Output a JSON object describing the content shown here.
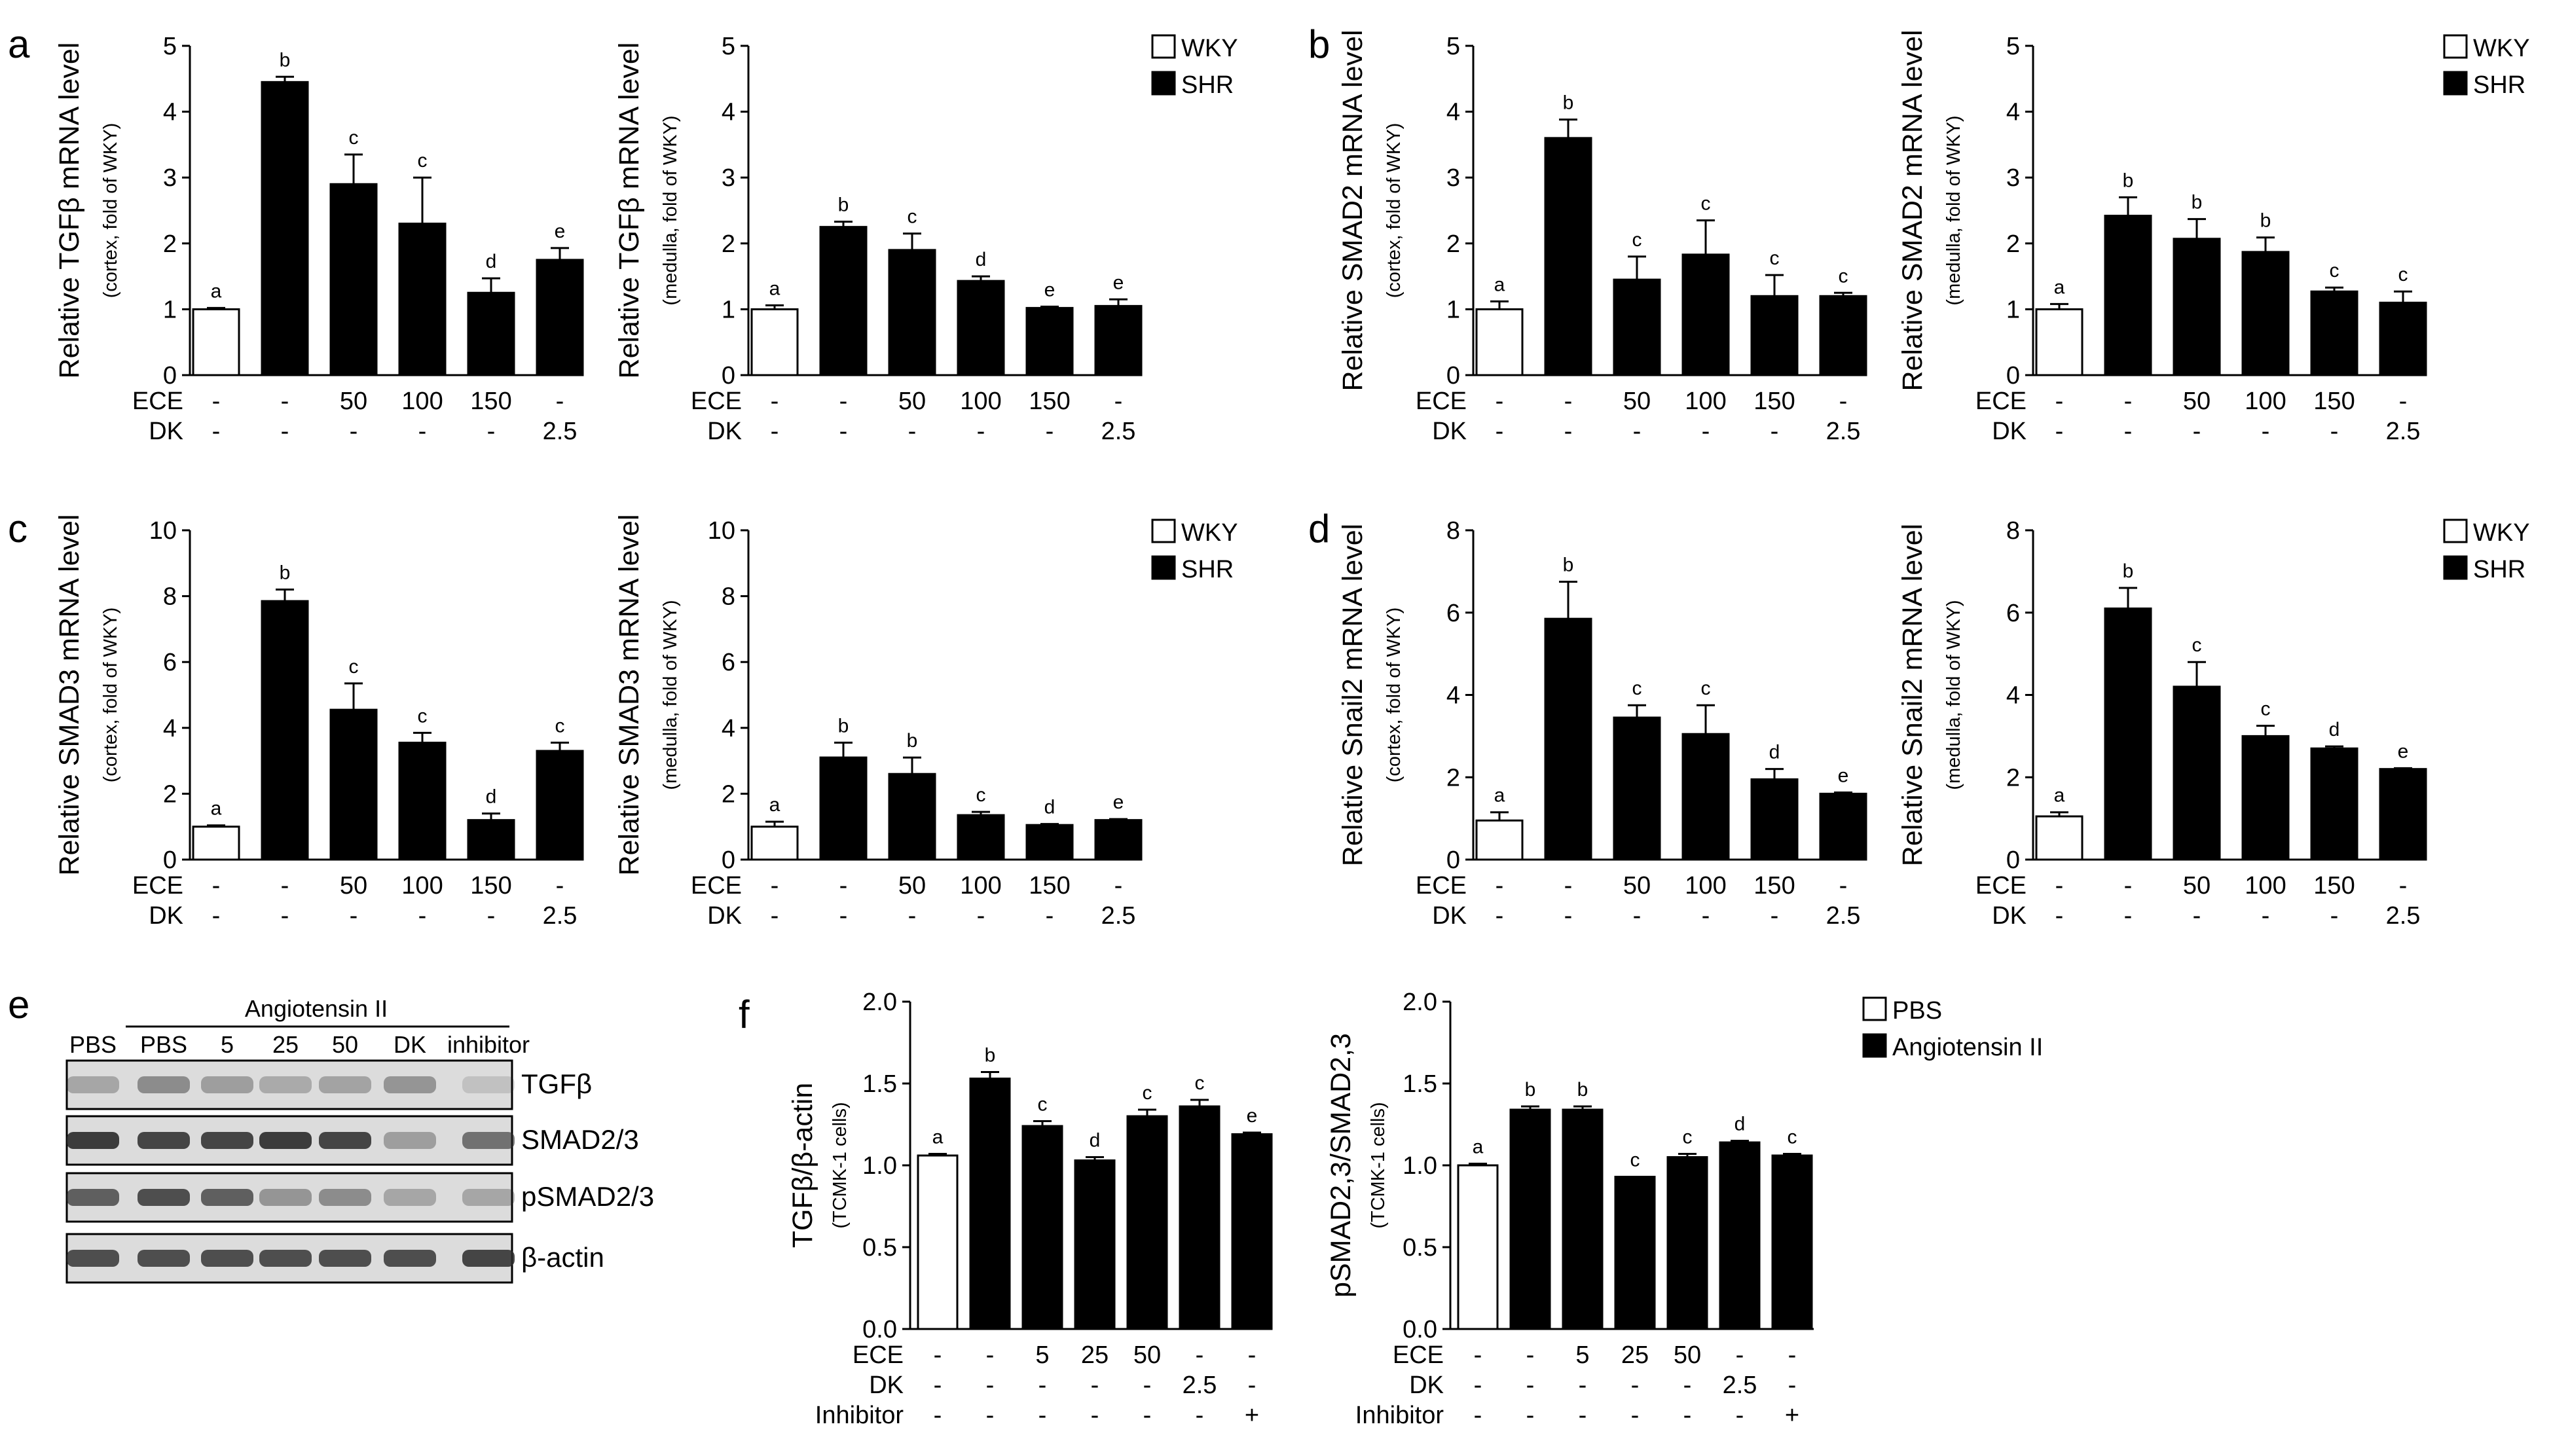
{
  "colors": {
    "ink": "#000000",
    "paper": "#ffffff",
    "blot_bg": "#dcdcdc",
    "blot_band": "#2a2a2a"
  },
  "panels": {
    "a": {
      "label": "a",
      "legend": [
        "WKY",
        "SHR"
      ]
    },
    "b": {
      "label": "b",
      "legend": [
        "WKY",
        "SHR"
      ]
    },
    "c": {
      "label": "c",
      "legend": [
        "WKY",
        "SHR"
      ]
    },
    "d": {
      "label": "d",
      "legend": [
        "WKY",
        "SHR"
      ]
    },
    "e": {
      "label": "e",
      "group_label": "Angiotensin II",
      "lanes": [
        "PBS",
        "PBS",
        "5",
        "25",
        "50",
        "DK",
        "inhibitor"
      ],
      "bands": [
        "TGFβ",
        "SMAD2/3",
        "pSMAD2/3",
        "β-actin"
      ]
    },
    "f": {
      "label": "f",
      "legend": [
        "PBS",
        "Angiotensin II"
      ]
    }
  },
  "chart_data": [
    {
      "id": "a1",
      "panel": "a",
      "type": "bar",
      "ylabel": "Relative TGFβ mRNA level",
      "ylabel_sub": "(cortex, fold of WKY)",
      "ylim": [
        0,
        5
      ],
      "yticks": [
        "0",
        "1",
        "2",
        "3",
        "4",
        "5"
      ],
      "series": [
        {
          "name": "WKY",
          "fill": "white"
        },
        {
          "name": "SHR",
          "fill": "black"
        }
      ],
      "bars": [
        {
          "value": 1.0,
          "error": 0.02,
          "letter": "a",
          "series": "WKY"
        },
        {
          "value": 4.45,
          "error": 0.08,
          "letter": "b",
          "series": "SHR"
        },
        {
          "value": 2.9,
          "error": 0.45,
          "letter": "c",
          "series": "SHR"
        },
        {
          "value": 2.3,
          "error": 0.7,
          "letter": "c",
          "series": "SHR"
        },
        {
          "value": 1.25,
          "error": 0.22,
          "letter": "d",
          "series": "SHR"
        },
        {
          "value": 1.75,
          "error": 0.18,
          "letter": "e",
          "series": "SHR"
        }
      ],
      "conditions": [
        {
          "name": "ECE",
          "values": [
            "-",
            "-",
            "50",
            "100",
            "150",
            "-"
          ]
        },
        {
          "name": "DK",
          "values": [
            "-",
            "-",
            "-",
            "-",
            "-",
            "2.5"
          ]
        }
      ]
    },
    {
      "id": "a2",
      "panel": "a",
      "type": "bar",
      "ylabel": "Relative TGFβ mRNA level",
      "ylabel_sub": "(medulla, fold of WKY)",
      "ylim": [
        0,
        5
      ],
      "yticks": [
        "0",
        "1",
        "2",
        "3",
        "4",
        "5"
      ],
      "series": [
        {
          "name": "WKY",
          "fill": "white"
        },
        {
          "name": "SHR",
          "fill": "black"
        }
      ],
      "bars": [
        {
          "value": 1.0,
          "error": 0.06,
          "letter": "a",
          "series": "WKY"
        },
        {
          "value": 2.25,
          "error": 0.08,
          "letter": "b",
          "series": "SHR"
        },
        {
          "value": 1.9,
          "error": 0.25,
          "letter": "c",
          "series": "SHR"
        },
        {
          "value": 1.43,
          "error": 0.07,
          "letter": "d",
          "series": "SHR"
        },
        {
          "value": 1.02,
          "error": 0.02,
          "letter": "e",
          "series": "SHR"
        },
        {
          "value": 1.05,
          "error": 0.1,
          "letter": "e",
          "series": "SHR"
        }
      ],
      "conditions": [
        {
          "name": "ECE",
          "values": [
            "-",
            "-",
            "50",
            "100",
            "150",
            "-"
          ]
        },
        {
          "name": "DK",
          "values": [
            "-",
            "-",
            "-",
            "-",
            "-",
            "2.5"
          ]
        }
      ]
    },
    {
      "id": "b1",
      "panel": "b",
      "type": "bar",
      "ylabel": "Relative SMAD2 mRNA level",
      "ylabel_sub": "(cortex, fold of WKY)",
      "ylim": [
        0,
        5
      ],
      "yticks": [
        "0",
        "1",
        "2",
        "3",
        "4",
        "5"
      ],
      "series": [
        {
          "name": "WKY",
          "fill": "white"
        },
        {
          "name": "SHR",
          "fill": "black"
        }
      ],
      "bars": [
        {
          "value": 1.0,
          "error": 0.12,
          "letter": "a",
          "series": "WKY"
        },
        {
          "value": 3.6,
          "error": 0.28,
          "letter": "b",
          "series": "SHR"
        },
        {
          "value": 1.45,
          "error": 0.35,
          "letter": "c",
          "series": "SHR"
        },
        {
          "value": 1.83,
          "error": 0.52,
          "letter": "c",
          "series": "SHR"
        },
        {
          "value": 1.2,
          "error": 0.32,
          "letter": "c",
          "series": "SHR"
        },
        {
          "value": 1.2,
          "error": 0.05,
          "letter": "c",
          "series": "SHR"
        }
      ],
      "conditions": [
        {
          "name": "ECE",
          "values": [
            "-",
            "-",
            "50",
            "100",
            "150",
            "-"
          ]
        },
        {
          "name": "DK",
          "values": [
            "-",
            "-",
            "-",
            "-",
            "-",
            "2.5"
          ]
        }
      ]
    },
    {
      "id": "b2",
      "panel": "b",
      "type": "bar",
      "ylabel": "Relative SMAD2 mRNA level",
      "ylabel_sub": "(medulla, fold of WKY)",
      "ylim": [
        0,
        5
      ],
      "yticks": [
        "0",
        "1",
        "2",
        "3",
        "4",
        "5"
      ],
      "series": [
        {
          "name": "WKY",
          "fill": "white"
        },
        {
          "name": "SHR",
          "fill": "black"
        }
      ],
      "bars": [
        {
          "value": 1.0,
          "error": 0.08,
          "letter": "a",
          "series": "WKY"
        },
        {
          "value": 2.42,
          "error": 0.28,
          "letter": "b",
          "series": "SHR"
        },
        {
          "value": 2.07,
          "error": 0.3,
          "letter": "b",
          "series": "SHR"
        },
        {
          "value": 1.87,
          "error": 0.22,
          "letter": "b",
          "series": "SHR"
        },
        {
          "value": 1.27,
          "error": 0.06,
          "letter": "c",
          "series": "SHR"
        },
        {
          "value": 1.1,
          "error": 0.17,
          "letter": "c",
          "series": "SHR"
        }
      ],
      "conditions": [
        {
          "name": "ECE",
          "values": [
            "-",
            "-",
            "50",
            "100",
            "150",
            "-"
          ]
        },
        {
          "name": "DK",
          "values": [
            "-",
            "-",
            "-",
            "-",
            "-",
            "2.5"
          ]
        }
      ]
    },
    {
      "id": "c1",
      "panel": "c",
      "type": "bar",
      "ylabel": "Relative SMAD3 mRNA level",
      "ylabel_sub": "(cortex, fold of WKY)",
      "ylim": [
        0,
        10
      ],
      "yticks": [
        "0",
        "2",
        "4",
        "6",
        "8",
        "10"
      ],
      "series": [
        {
          "name": "WKY",
          "fill": "white"
        },
        {
          "name": "SHR",
          "fill": "black"
        }
      ],
      "bars": [
        {
          "value": 1.0,
          "error": 0.04,
          "letter": "a",
          "series": "WKY"
        },
        {
          "value": 7.85,
          "error": 0.35,
          "letter": "b",
          "series": "SHR"
        },
        {
          "value": 4.55,
          "error": 0.8,
          "letter": "c",
          "series": "SHR"
        },
        {
          "value": 3.55,
          "error": 0.3,
          "letter": "c",
          "series": "SHR"
        },
        {
          "value": 1.2,
          "error": 0.2,
          "letter": "d",
          "series": "SHR"
        },
        {
          "value": 3.3,
          "error": 0.25,
          "letter": "c",
          "series": "SHR"
        }
      ],
      "conditions": [
        {
          "name": "ECE",
          "values": [
            "-",
            "-",
            "50",
            "100",
            "150",
            "-"
          ]
        },
        {
          "name": "DK",
          "values": [
            "-",
            "-",
            "-",
            "-",
            "-",
            "2.5"
          ]
        }
      ]
    },
    {
      "id": "c2",
      "panel": "c",
      "type": "bar",
      "ylabel": "Relative SMAD3 mRNA level",
      "ylabel_sub": "(medulla, fold of WKY)",
      "ylim": [
        0,
        10
      ],
      "yticks": [
        "0",
        "2",
        "4",
        "6",
        "8",
        "10"
      ],
      "series": [
        {
          "name": "WKY",
          "fill": "white"
        },
        {
          "name": "SHR",
          "fill": "black"
        }
      ],
      "bars": [
        {
          "value": 1.0,
          "error": 0.15,
          "letter": "a",
          "series": "WKY"
        },
        {
          "value": 3.1,
          "error": 0.45,
          "letter": "b",
          "series": "SHR"
        },
        {
          "value": 2.6,
          "error": 0.5,
          "letter": "b",
          "series": "SHR"
        },
        {
          "value": 1.35,
          "error": 0.1,
          "letter": "c",
          "series": "SHR"
        },
        {
          "value": 1.05,
          "error": 0.03,
          "letter": "d",
          "series": "SHR"
        },
        {
          "value": 1.2,
          "error": 0.03,
          "letter": "e",
          "series": "SHR"
        }
      ],
      "conditions": [
        {
          "name": "ECE",
          "values": [
            "-",
            "-",
            "50",
            "100",
            "150",
            "-"
          ]
        },
        {
          "name": "DK",
          "values": [
            "-",
            "-",
            "-",
            "-",
            "-",
            "2.5"
          ]
        }
      ]
    },
    {
      "id": "d1",
      "panel": "d",
      "type": "bar",
      "ylabel": "Relative Snail2 mRNA level",
      "ylabel_sub": "(cortex, fold of WKY)",
      "ylim": [
        0,
        8
      ],
      "yticks": [
        "0",
        "2",
        "4",
        "6",
        "8"
      ],
      "series": [
        {
          "name": "WKY",
          "fill": "white"
        },
        {
          "name": "SHR",
          "fill": "black"
        }
      ],
      "bars": [
        {
          "value": 0.95,
          "error": 0.2,
          "letter": "a",
          "series": "WKY"
        },
        {
          "value": 5.85,
          "error": 0.9,
          "letter": "b",
          "series": "SHR"
        },
        {
          "value": 3.45,
          "error": 0.3,
          "letter": "c",
          "series": "SHR"
        },
        {
          "value": 3.05,
          "error": 0.7,
          "letter": "c",
          "series": "SHR"
        },
        {
          "value": 1.95,
          "error": 0.25,
          "letter": "d",
          "series": "SHR"
        },
        {
          "value": 1.6,
          "error": 0.03,
          "letter": "e",
          "series": "SHR"
        }
      ],
      "conditions": [
        {
          "name": "ECE",
          "values": [
            "-",
            "-",
            "50",
            "100",
            "150",
            "-"
          ]
        },
        {
          "name": "DK",
          "values": [
            "-",
            "-",
            "-",
            "-",
            "-",
            "2.5"
          ]
        }
      ]
    },
    {
      "id": "d2",
      "panel": "d",
      "type": "bar",
      "ylabel": "Relative Snail2 mRNA level",
      "ylabel_sub": "(medulla, fold of WKY)",
      "ylim": [
        0,
        8
      ],
      "yticks": [
        "0",
        "2",
        "4",
        "6",
        "8"
      ],
      "series": [
        {
          "name": "WKY",
          "fill": "white"
        },
        {
          "name": "SHR",
          "fill": "black"
        }
      ],
      "bars": [
        {
          "value": 1.05,
          "error": 0.1,
          "letter": "a",
          "series": "WKY"
        },
        {
          "value": 6.1,
          "error": 0.5,
          "letter": "b",
          "series": "SHR"
        },
        {
          "value": 4.2,
          "error": 0.6,
          "letter": "c",
          "series": "SHR"
        },
        {
          "value": 3.0,
          "error": 0.25,
          "letter": "c",
          "series": "SHR"
        },
        {
          "value": 2.7,
          "error": 0.05,
          "letter": "d",
          "series": "SHR"
        },
        {
          "value": 2.2,
          "error": 0.02,
          "letter": "e",
          "series": "SHR"
        }
      ],
      "conditions": [
        {
          "name": "ECE",
          "values": [
            "-",
            "-",
            "50",
            "100",
            "150",
            "-"
          ]
        },
        {
          "name": "DK",
          "values": [
            "-",
            "-",
            "-",
            "-",
            "-",
            "2.5"
          ]
        }
      ]
    },
    {
      "id": "f1",
      "panel": "f",
      "type": "bar",
      "ylabel": "TGFβ/β-actin",
      "ylabel_sub": "(TCMK-1 cells)",
      "ylim": [
        0,
        2.0
      ],
      "yticks": [
        "0.0",
        "0.5",
        "1.0",
        "1.5",
        "2.0"
      ],
      "series": [
        {
          "name": "PBS",
          "fill": "white"
        },
        {
          "name": "Angiotensin II",
          "fill": "black"
        }
      ],
      "bars": [
        {
          "value": 1.06,
          "error": 0.01,
          "letter": "a",
          "series": "PBS"
        },
        {
          "value": 1.53,
          "error": 0.04,
          "letter": "b",
          "series": "Angiotensin II"
        },
        {
          "value": 1.24,
          "error": 0.03,
          "letter": "c",
          "series": "Angiotensin II"
        },
        {
          "value": 1.03,
          "error": 0.02,
          "letter": "d",
          "series": "Angiotensin II"
        },
        {
          "value": 1.3,
          "error": 0.04,
          "letter": "c",
          "series": "Angiotensin II"
        },
        {
          "value": 1.36,
          "error": 0.04,
          "letter": "c",
          "series": "Angiotensin II"
        },
        {
          "value": 1.19,
          "error": 0.01,
          "letter": "e",
          "series": "Angiotensin II"
        }
      ],
      "conditions": [
        {
          "name": "ECE",
          "values": [
            "-",
            "-",
            "5",
            "25",
            "50",
            "-",
            "-"
          ]
        },
        {
          "name": "DK",
          "values": [
            "-",
            "-",
            "-",
            "-",
            "-",
            "2.5",
            "-"
          ]
        },
        {
          "name": "Inhibitor",
          "values": [
            "-",
            "-",
            "-",
            "-",
            "-",
            "-",
            "+"
          ]
        }
      ]
    },
    {
      "id": "f2",
      "panel": "f",
      "type": "bar",
      "ylabel": "pSMAD2,3/SMAD2,3",
      "ylabel_sub": "(TCMK-1 cells)",
      "ylim": [
        0,
        2.0
      ],
      "yticks": [
        "0.0",
        "0.5",
        "1.0",
        "1.5",
        "2.0"
      ],
      "series": [
        {
          "name": "PBS",
          "fill": "white"
        },
        {
          "name": "Angiotensin II",
          "fill": "black"
        }
      ],
      "bars": [
        {
          "value": 1.0,
          "error": 0.01,
          "letter": "a",
          "series": "PBS"
        },
        {
          "value": 1.34,
          "error": 0.02,
          "letter": "b",
          "series": "Angiotensin II"
        },
        {
          "value": 1.34,
          "error": 0.02,
          "letter": "b",
          "series": "Angiotensin II"
        },
        {
          "value": 0.93,
          "error": 0.0,
          "letter": "c",
          "series": "Angiotensin II"
        },
        {
          "value": 1.05,
          "error": 0.02,
          "letter": "c",
          "series": "Angiotensin II"
        },
        {
          "value": 1.14,
          "error": 0.01,
          "letter": "d",
          "series": "Angiotensin II"
        },
        {
          "value": 1.06,
          "error": 0.01,
          "letter": "c",
          "series": "Angiotensin II"
        }
      ],
      "conditions": [
        {
          "name": "ECE",
          "values": [
            "-",
            "-",
            "5",
            "25",
            "50",
            "-",
            "-"
          ]
        },
        {
          "name": "DK",
          "values": [
            "-",
            "-",
            "-",
            "-",
            "-",
            "2.5",
            "-"
          ]
        },
        {
          "name": "Inhibitor",
          "values": [
            "-",
            "-",
            "-",
            "-",
            "-",
            "-",
            "+"
          ]
        }
      ]
    }
  ]
}
